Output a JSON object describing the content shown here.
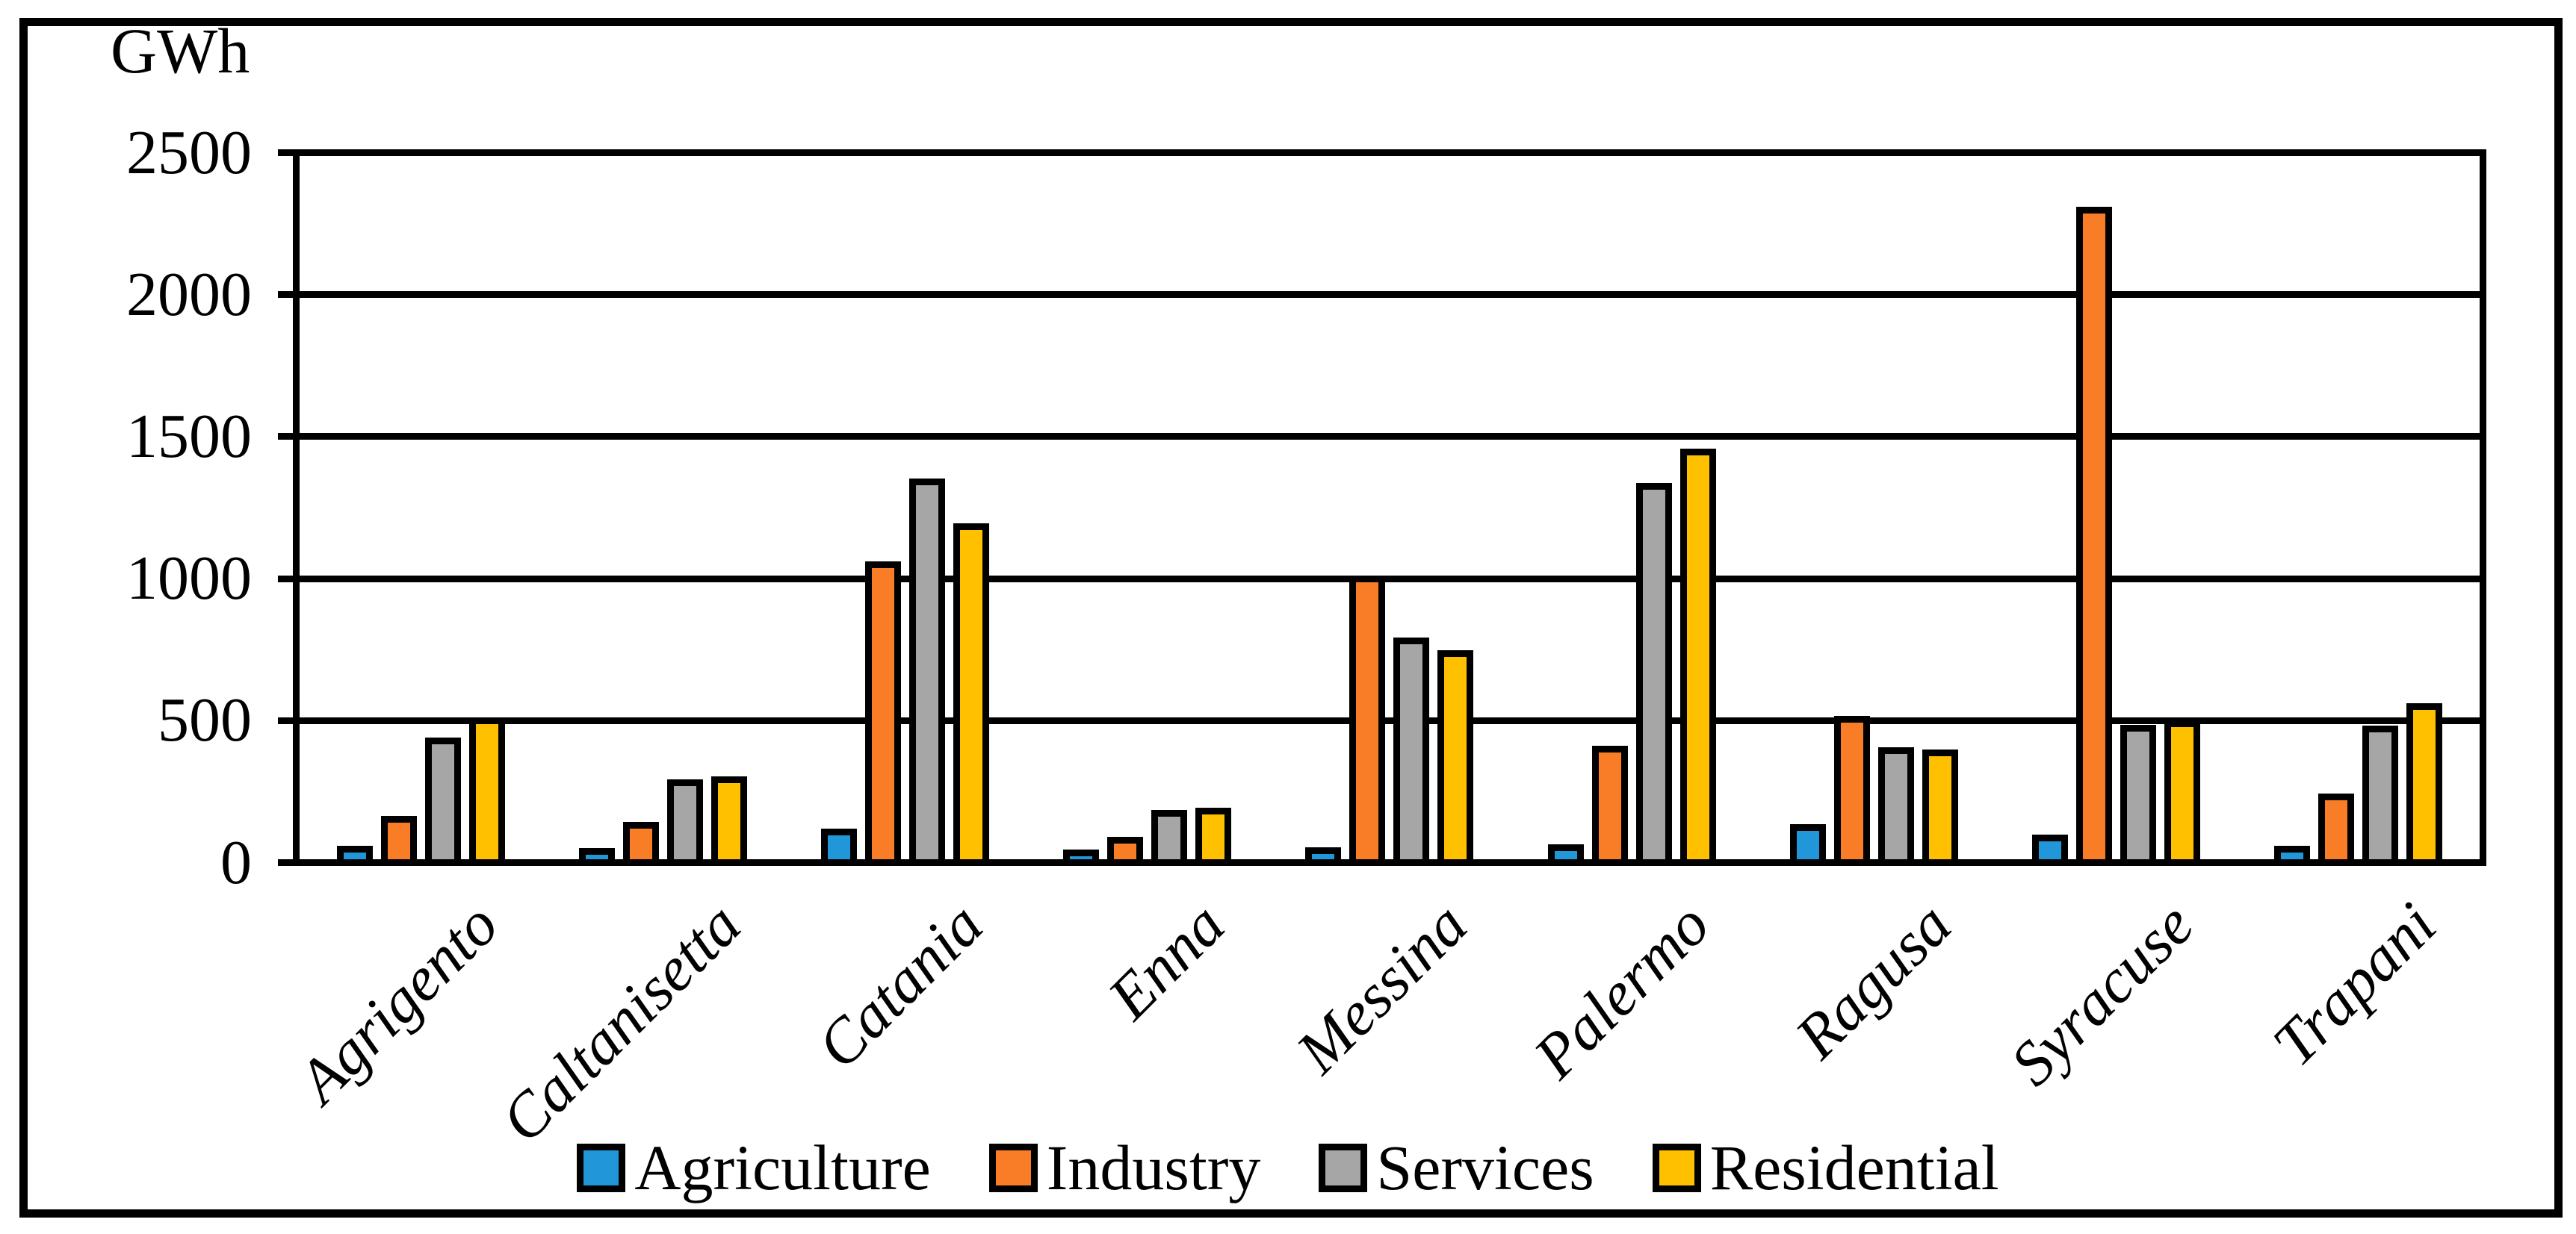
{
  "figure": {
    "y_axis_unit_label": "GWh"
  },
  "chart_data": {
    "type": "bar",
    "title": "",
    "y_axis_label": "GWh",
    "x_axis_label": "",
    "categories": [
      "Agrigento",
      "Caltanisetta",
      "Catania",
      "Enna",
      "Messina",
      "Palermo",
      "Ragusa",
      "Syracuse",
      "Trapani"
    ],
    "series": [
      {
        "name": "Agriculture",
        "color": "#2196D8",
        "values": [
          25,
          15,
          85,
          10,
          18,
          30,
          100,
          65,
          25
        ]
      },
      {
        "name": "Industry",
        "color": "#F97D27",
        "values": [
          130,
          110,
          1035,
          55,
          985,
          380,
          485,
          2295,
          210
        ]
      },
      {
        "name": "Services",
        "color": "#A6A6A6",
        "values": [
          410,
          260,
          1330,
          150,
          765,
          1315,
          375,
          455,
          450
        ]
      },
      {
        "name": "Residential",
        "color": "#FFC000",
        "values": [
          480,
          270,
          1170,
          160,
          720,
          1435,
          365,
          470,
          530
        ]
      }
    ],
    "ylim": [
      0,
      2500
    ],
    "yticks": [
      0,
      500,
      1000,
      1500,
      2000,
      2500
    ],
    "grid": true,
    "bar_outline_color": "#000000",
    "legend_position": "bottom"
  }
}
